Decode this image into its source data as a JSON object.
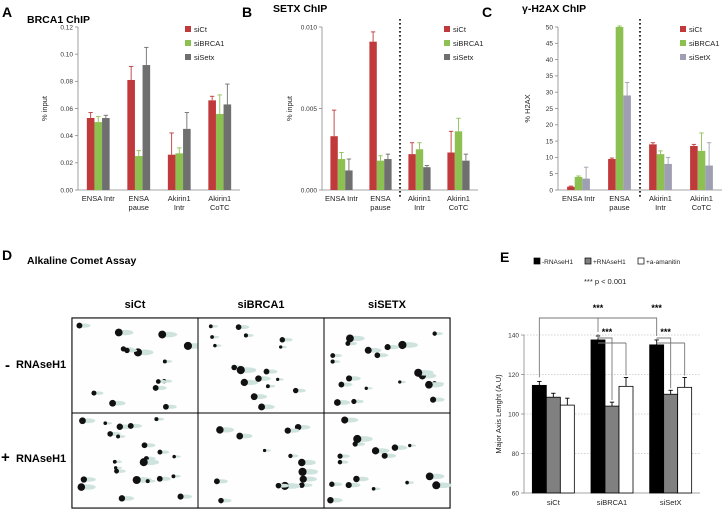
{
  "panels": {
    "a": {
      "letter": "A"
    },
    "b": {
      "letter": "B"
    },
    "c": {
      "letter": "C"
    },
    "d": {
      "letter": "D",
      "title": "Alkaline Comet Assay",
      "columns": [
        "siCt",
        "siBRCA1",
        "siSETX"
      ],
      "rows": [
        {
          "sign": "-",
          "label": "RNAseH1"
        },
        {
          "sign": "+",
          "label": "RNAseH1"
        }
      ]
    },
    "e": {
      "letter": "E",
      "significance_note": "*** p < 0.001",
      "star_label": "***"
    }
  },
  "colors": {
    "siCt": "#c0393b",
    "siBRCA1": "#8cc151",
    "siSetx": "#6f6f6f",
    "siSetX": "#9f9fb3",
    "minus_rnaseh1": "#000000",
    "plus_rnaseh1": "#808080",
    "amanitin": "#ffffff"
  },
  "chart_data": [
    {
      "type": "bar",
      "title": "BRCA1 ChIP",
      "ylabel": "% input",
      "ylim": [
        0,
        0.12
      ],
      "yticks": [
        "0.00",
        "0.02",
        "0.04",
        "0.06",
        "0.08",
        "0.10",
        "0.12"
      ],
      "categories": [
        "ENSA Intr",
        "ENSA pause",
        "Akirin1 Intr",
        "Akirin1 CoTC"
      ],
      "series": [
        {
          "name": "siCt",
          "values": [
            0.053,
            0.081,
            0.026,
            0.066
          ],
          "errors": [
            0.004,
            0.01,
            0.016,
            0.003
          ]
        },
        {
          "name": "siBRCA1",
          "values": [
            0.05,
            0.025,
            0.027,
            0.056
          ],
          "errors": [
            0.004,
            0.004,
            0.004,
            0.014
          ]
        },
        {
          "name": "siSetx",
          "values": [
            0.053,
            0.092,
            0.045,
            0.063
          ],
          "errors": [
            0.002,
            0.013,
            0.012,
            0.015
          ]
        }
      ]
    },
    {
      "type": "bar",
      "title": "SETX ChIP",
      "ylabel": "% input",
      "ylim": [
        0,
        0.01
      ],
      "yticks": [
        "0.000",
        "0.005",
        "0.010"
      ],
      "categories": [
        "ENSA Intr",
        "ENSA pause",
        "Akirin1 Intr",
        "Akirin1 CoTC"
      ],
      "divider_after_category": 1,
      "series": [
        {
          "name": "siCt",
          "values": [
            0.0033,
            0.0091,
            0.0022,
            0.0023
          ],
          "errors": [
            0.0016,
            0.0006,
            0.0007,
            0.0013
          ]
        },
        {
          "name": "siBRCA1",
          "values": [
            0.0019,
            0.0018,
            0.0025,
            0.0036
          ],
          "errors": [
            0.0004,
            0.0003,
            0.0004,
            0.0008
          ]
        },
        {
          "name": "siSetx",
          "values": [
            0.0012,
            0.0019,
            0.0014,
            0.0018
          ],
          "errors": [
            0.0007,
            0.0003,
            0.0001,
            0.0004
          ]
        }
      ]
    },
    {
      "type": "bar",
      "title": "γ-H2AX ChIP",
      "ylabel": "% H2AX",
      "ylim": [
        0,
        50
      ],
      "yticks": [
        "0",
        "5",
        "10",
        "15",
        "20",
        "25",
        "30",
        "35",
        "40",
        "45",
        "50"
      ],
      "categories": [
        "ENSA Intr",
        "ENSA pause",
        "Akirin1 Intr",
        "Akirin1 CoTC"
      ],
      "divider_after_category": 1,
      "series": [
        {
          "name": "siCt",
          "values": [
            1,
            9.5,
            14,
            13.5
          ],
          "errors": [
            0.2,
            0.3,
            0.5,
            0.5
          ]
        },
        {
          "name": "siBRCA1",
          "values": [
            4,
            50,
            11,
            12
          ],
          "errors": [
            0.3,
            0.3,
            1.0,
            5.5
          ]
        },
        {
          "name": "siSetX",
          "values": [
            3.5,
            29,
            8,
            7.5
          ],
          "errors": [
            3.5,
            4.0,
            2.0,
            7.0
          ]
        }
      ]
    },
    {
      "type": "bar",
      "title": "",
      "ylabel": "Major Axis Lenght (A.U)",
      "ylim": [
        60,
        140
      ],
      "yticks": [
        "60",
        "80",
        "100",
        "120",
        "140"
      ],
      "categories": [
        "siCt",
        "siBRCA1",
        "siSetX"
      ],
      "series": [
        {
          "name": "-RNAseH1",
          "values": [
            114.5,
            137.5,
            135
          ],
          "errors": [
            2.0,
            2.0,
            2.5
          ]
        },
        {
          "name": "+RNAseH1",
          "values": [
            108.5,
            104,
            110
          ],
          "errors": [
            2.0,
            2.0,
            2.0
          ]
        },
        {
          "name": "+a-amanitin",
          "values": [
            104.5,
            114,
            113.5
          ],
          "errors": [
            3.5,
            4.5,
            5.0
          ]
        }
      ]
    }
  ]
}
